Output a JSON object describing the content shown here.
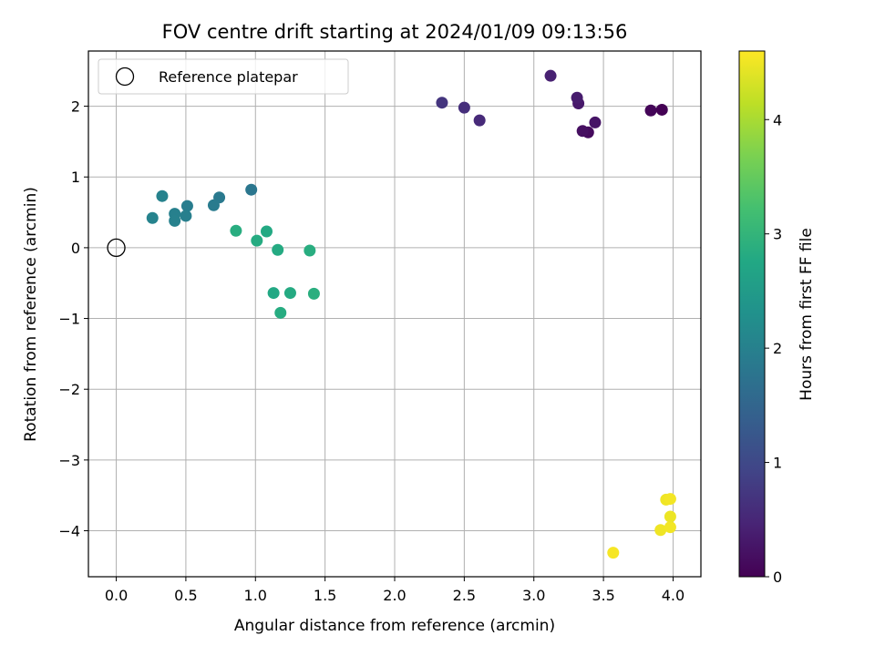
{
  "chart_data": {
    "type": "scatter",
    "title": "FOV centre drift starting at 2024/01/09 09:13:56",
    "xlabel": "Angular distance from reference (arcmin)",
    "ylabel": "Rotation from reference (arcmin)",
    "xlim": [
      -0.2,
      4.2
    ],
    "ylim": [
      -4.65,
      2.78
    ],
    "xticks": [
      "0.0",
      "0.5",
      "1.0",
      "1.5",
      "2.0",
      "2.5",
      "3.0",
      "3.5",
      "4.0"
    ],
    "xtick_values": [
      0.0,
      0.5,
      1.0,
      1.5,
      2.0,
      2.5,
      3.0,
      3.5,
      4.0
    ],
    "yticks": [
      "−4",
      "−3",
      "−2",
      "−1",
      "0",
      "1",
      "2"
    ],
    "ytick_values": [
      -4,
      -3,
      -2,
      -1,
      0,
      1,
      2
    ],
    "grid": true,
    "legend": {
      "position": "top-left",
      "entries": [
        {
          "label": "Reference platepar",
          "marker": "open-circle",
          "x": 0.0,
          "y": 0.0
        }
      ]
    },
    "colorbar": {
      "label": "Hours from first FF file",
      "range": [
        0,
        4.6
      ],
      "ticks": [
        "0",
        "1",
        "2",
        "3",
        "4"
      ],
      "tick_values": [
        0,
        1,
        2,
        3,
        4
      ],
      "colormap": "viridis"
    },
    "points": [
      {
        "x": 3.92,
        "y": 1.95,
        "hours": 0.0
      },
      {
        "x": 3.84,
        "y": 1.94,
        "hours": 0.05
      },
      {
        "x": 3.39,
        "y": 1.63,
        "hours": 0.12
      },
      {
        "x": 3.35,
        "y": 1.65,
        "hours": 0.18
      },
      {
        "x": 3.44,
        "y": 1.77,
        "hours": 0.25
      },
      {
        "x": 3.32,
        "y": 2.04,
        "hours": 0.3
      },
      {
        "x": 3.31,
        "y": 2.12,
        "hours": 0.35
      },
      {
        "x": 3.12,
        "y": 2.43,
        "hours": 0.42
      },
      {
        "x": 2.61,
        "y": 1.8,
        "hours": 0.55
      },
      {
        "x": 2.5,
        "y": 1.98,
        "hours": 0.62
      },
      {
        "x": 2.34,
        "y": 2.05,
        "hours": 0.7
      },
      {
        "x": 0.97,
        "y": 0.82,
        "hours": 1.8
      },
      {
        "x": 0.74,
        "y": 0.71,
        "hours": 1.85
      },
      {
        "x": 0.7,
        "y": 0.6,
        "hours": 1.9
      },
      {
        "x": 0.51,
        "y": 0.59,
        "hours": 1.93
      },
      {
        "x": 0.5,
        "y": 0.45,
        "hours": 1.96
      },
      {
        "x": 0.42,
        "y": 0.48,
        "hours": 1.98
      },
      {
        "x": 0.42,
        "y": 0.38,
        "hours": 2.0
      },
      {
        "x": 0.33,
        "y": 0.73,
        "hours": 2.02
      },
      {
        "x": 0.26,
        "y": 0.42,
        "hours": 2.05
      },
      {
        "x": 0.86,
        "y": 0.24,
        "hours": 2.85
      },
      {
        "x": 1.01,
        "y": 0.1,
        "hours": 2.82
      },
      {
        "x": 1.08,
        "y": 0.23,
        "hours": 2.78
      },
      {
        "x": 1.16,
        "y": -0.03,
        "hours": 2.8
      },
      {
        "x": 1.39,
        "y": -0.04,
        "hours": 2.86
      },
      {
        "x": 1.13,
        "y": -0.64,
        "hours": 2.75
      },
      {
        "x": 1.25,
        "y": -0.64,
        "hours": 2.8
      },
      {
        "x": 1.42,
        "y": -0.65,
        "hours": 2.87
      },
      {
        "x": 1.18,
        "y": -0.92,
        "hours": 2.83
      },
      {
        "x": 3.57,
        "y": -4.31,
        "hours": 4.55
      },
      {
        "x": 3.91,
        "y": -3.99,
        "hours": 4.5
      },
      {
        "x": 3.98,
        "y": -3.95,
        "hours": 4.52
      },
      {
        "x": 3.98,
        "y": -3.8,
        "hours": 4.48
      },
      {
        "x": 3.95,
        "y": -3.56,
        "hours": 4.5
      },
      {
        "x": 3.98,
        "y": -3.55,
        "hours": 4.53
      }
    ]
  }
}
